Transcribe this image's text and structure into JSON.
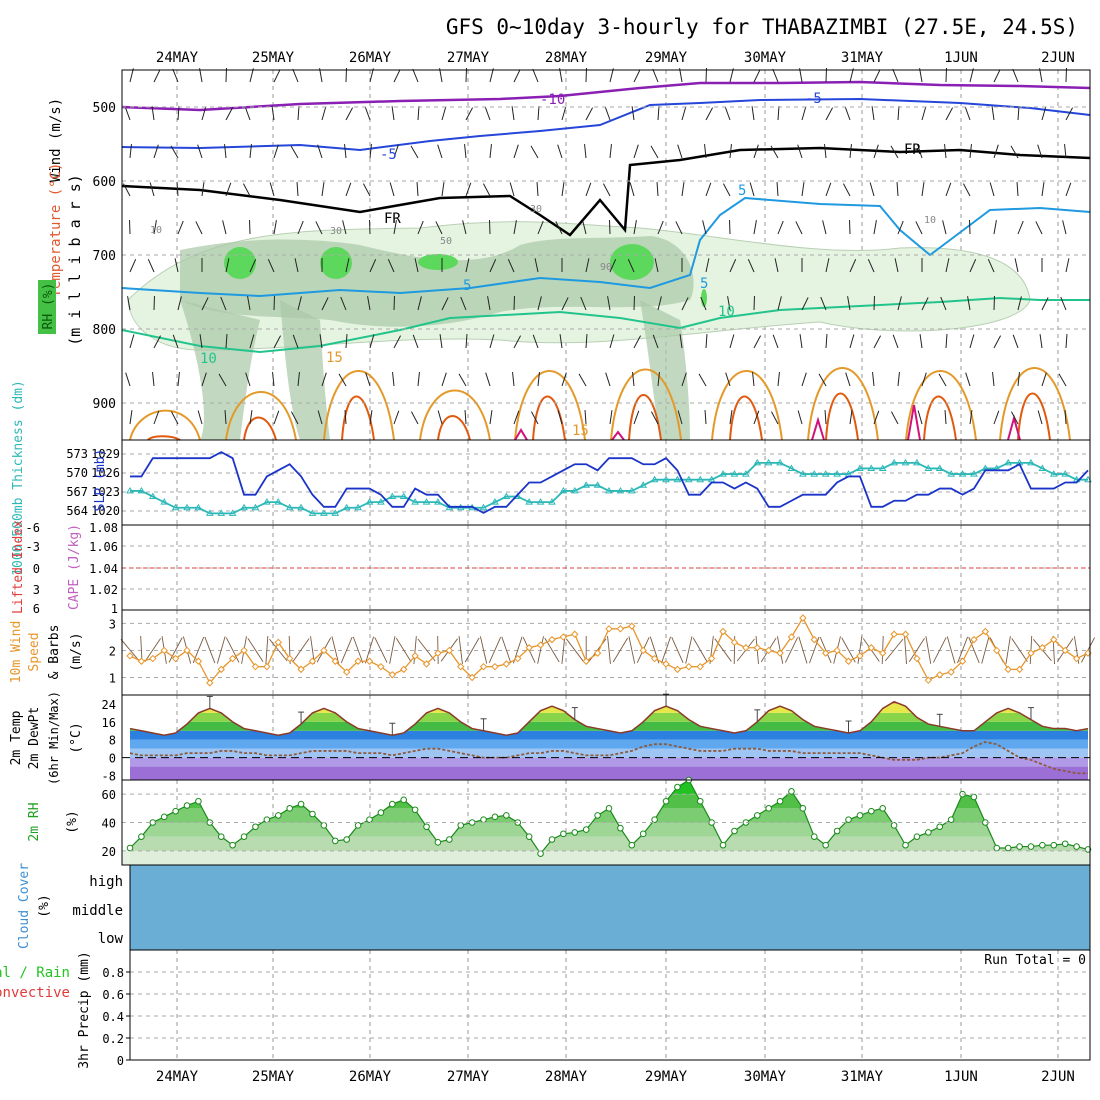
{
  "title": "GFS 0~10day 3-hourly for THABAZIMBI (27.5E, 24.5S)",
  "dates": [
    "24MAY",
    "25MAY",
    "26MAY",
    "27MAY",
    "28MAY",
    "29MAY",
    "30MAY",
    "31MAY",
    "1JUN",
    "2JUN"
  ],
  "colors": {
    "purple": "#8a1fb4",
    "blue": "#2546d8",
    "black": "#000000",
    "lightblue": "#1f9ae0",
    "teal": "#22c48c",
    "orange": "#e39a2a",
    "darkorange": "#e05a10",
    "magenta": "#d0127a",
    "rh_light": "#e5f3e1",
    "rh_mid": "#a9c7a6",
    "rh_green": "#5cd85c",
    "slp": "#1a33c8",
    "thick": "#2cb8b8",
    "li": "#e23b3b",
    "wind": "#e8952a",
    "cloud": "#6aaed6",
    "dew": "#8e5a3c"
  },
  "panels": {
    "upper_air": {
      "label_wind": "Wind (m/s)",
      "label_temp": "Temperature (°C)",
      "label_rh": "RH (%)",
      "label_mb": "(m i l l i b a r s)",
      "yticks": [
        "500",
        "600",
        "700",
        "800",
        "900"
      ],
      "contour_labels": [
        "-10",
        "-5",
        "-5",
        "FR",
        "FR",
        "5",
        "5",
        "5",
        "10",
        "10",
        "15",
        "15",
        "10",
        "10",
        "30",
        "30",
        "50",
        "90"
      ]
    },
    "slp_thick": {
      "label_thick": "1000-500mb Thickness (dm)",
      "label_slp": "SLP (mb)",
      "thick_ticks": [
        "573",
        "570",
        "567",
        "564"
      ],
      "slp_ticks": [
        "1029",
        "1026",
        "1023",
        "1020"
      ]
    },
    "cape_li": {
      "label_li": "Lifted Index",
      "label_cape": "CAPE (J/kg)",
      "li_ticks": [
        "-6",
        "-3",
        "0",
        "3",
        "6"
      ],
      "cape_ticks": [
        "1.08",
        "1.06",
        "1.04",
        "1.02",
        "1"
      ]
    },
    "wind10": {
      "label1": "10m Wind",
      "label2": "Speed",
      "label3": "& Barbs",
      "label4": "(m/s)",
      "yticks": [
        "3",
        "2",
        "1"
      ]
    },
    "temp2m": {
      "label1": "2m Temp",
      "label2": "2m DewPt",
      "label3": "(6hr Min/Max)",
      "label4": "(°C)",
      "yticks": [
        "24",
        "16",
        "8",
        "0",
        "-8"
      ]
    },
    "rh2m": {
      "label1": "2m RH",
      "label2": "(%)",
      "yticks": [
        "60",
        "40",
        "20"
      ]
    },
    "cloud": {
      "label1": "Cloud Cover",
      "label2": "(%)",
      "levels": [
        "high",
        "middle",
        "low"
      ]
    },
    "precip": {
      "label_total": "Total / Rain",
      "label_conv": "Convective",
      "label_axis": "3hr Precip (mm)",
      "yticks": [
        "0.8",
        "0.6",
        "0.4",
        "0.2",
        "0"
      ],
      "run_total": "Run Total = 0"
    }
  },
  "chart_data": [
    {
      "type": "line",
      "title": "SLP (mb)",
      "ylim": [
        1019,
        1031
      ],
      "series": [
        {
          "name": "SLP (mb)",
          "values": [
            1026,
            1026,
            1029,
            1029,
            1029,
            1029,
            1029,
            1029,
            1030,
            1029,
            1023,
            1023,
            1026,
            1027,
            1028,
            1026,
            1023,
            1021,
            1021,
            1024,
            1024,
            1024,
            1023,
            1021,
            1021,
            1024,
            1023,
            1023,
            1021,
            1021,
            1021,
            1020,
            1021,
            1021,
            1023,
            1025,
            1025,
            1026,
            1027,
            1028,
            1028,
            1027,
            1029,
            1029,
            1029,
            1028,
            1028,
            1029,
            1027,
            1023,
            1023,
            1025,
            1025,
            1024,
            1025,
            1024,
            1021,
            1021,
            1022,
            1023,
            1023,
            1023,
            1025,
            1026,
            1026,
            1021,
            1021,
            1022,
            1022,
            1023,
            1023,
            1024,
            1024,
            1023,
            1024,
            1027,
            1027,
            1027,
            1028,
            1024,
            1024,
            1024,
            1025,
            1025,
            1027
          ]
        }
      ]
    },
    {
      "type": "line",
      "title": "1000-500mb Thickness (dm)",
      "ylim": [
        562,
        575
      ],
      "series": [
        {
          "name": "1000-500mb Thickness (dm)",
          "values": [
            567,
            567,
            566,
            565,
            564,
            564,
            564,
            563,
            563,
            563,
            564,
            564,
            565,
            565,
            564,
            564,
            563,
            563,
            563,
            564,
            564,
            565,
            565,
            566,
            566,
            565,
            565,
            565,
            564,
            564,
            564,
            564,
            565,
            566,
            566,
            565,
            565,
            565,
            567,
            567,
            568,
            568,
            567,
            567,
            567,
            568,
            569,
            569,
            569,
            569,
            569,
            569,
            570,
            570,
            570,
            572,
            572,
            572,
            571,
            570,
            570,
            570,
            570,
            570,
            571,
            571,
            571,
            572,
            572,
            572,
            571,
            571,
            570,
            570,
            570,
            571,
            571,
            572,
            572,
            572,
            571,
            570,
            570,
            569,
            569
          ]
        }
      ]
    },
    {
      "type": "line",
      "title": "10m Wind Speed (m/s)",
      "ylim": [
        0.5,
        3.2
      ],
      "series": [
        {
          "name": "10m Wind Speed",
          "values": [
            1.8,
            1.6,
            1.7,
            2.0,
            1.7,
            2.0,
            1.6,
            0.8,
            1.3,
            1.7,
            2.0,
            1.4,
            1.4,
            2.3,
            1.7,
            1.3,
            1.6,
            2.0,
            1.6,
            1.2,
            1.6,
            1.6,
            1.4,
            1.1,
            1.3,
            1.8,
            1.5,
            1.9,
            2.0,
            1.4,
            1.0,
            1.4,
            1.4,
            1.5,
            1.7,
            2.1,
            2.2,
            2.4,
            2.5,
            2.6,
            1.6,
            1.9,
            2.8,
            2.8,
            2.9,
            2.0,
            1.7,
            1.5,
            1.3,
            1.4,
            1.4,
            1.7,
            2.7,
            2.3,
            2.1,
            2.1,
            2.0,
            1.9,
            2.5,
            3.2,
            2.4,
            1.9,
            2.0,
            1.6,
            1.8,
            2.1,
            1.9,
            2.6,
            2.6,
            1.7,
            0.9,
            1.1,
            1.2,
            1.6,
            2.4,
            2.7,
            2.0,
            1.3,
            1.3,
            1.9,
            2.1,
            2.4,
            2.0,
            1.7,
            1.9
          ]
        }
      ]
    },
    {
      "type": "area",
      "title": "2m Temp (°C)",
      "ylim": [
        -10,
        28
      ],
      "series": [
        {
          "name": "2m Temp",
          "values": [
            13,
            12,
            11,
            10,
            11,
            15,
            20,
            22,
            20,
            16,
            13,
            12,
            11,
            10,
            11,
            15,
            20,
            22,
            20,
            16,
            13,
            12,
            11,
            10,
            11,
            15,
            20,
            22,
            20,
            16,
            13,
            12,
            11,
            10,
            11,
            16,
            21,
            23,
            21,
            17,
            14,
            13,
            12,
            11,
            12,
            16,
            21,
            23,
            21,
            17,
            14,
            13,
            12,
            11,
            12,
            16,
            21,
            23,
            21,
            17,
            14,
            13,
            12,
            11,
            12,
            16,
            22,
            25,
            23,
            18,
            15,
            14,
            13,
            12,
            12,
            16,
            20,
            22,
            20,
            17,
            14,
            13,
            13,
            12,
            13
          ]
        },
        {
          "name": "2m DewPt",
          "values": [
            2,
            1,
            1,
            1,
            1,
            2,
            2,
            2,
            3,
            3,
            2,
            2,
            1,
            1,
            1,
            2,
            3,
            3,
            3,
            3,
            2,
            2,
            2,
            1,
            2,
            3,
            4,
            4,
            3,
            2,
            1,
            0,
            0,
            0,
            1,
            2,
            2,
            3,
            3,
            2,
            1,
            1,
            1,
            2,
            3,
            5,
            6,
            6,
            5,
            4,
            3,
            3,
            3,
            4,
            4,
            4,
            3,
            3,
            3,
            2,
            2,
            2,
            2,
            2,
            2,
            1,
            0,
            -1,
            -1,
            -1,
            0,
            0,
            1,
            2,
            5,
            7,
            6,
            3,
            0,
            -1,
            -3,
            -5,
            -6,
            -7,
            -7
          ]
        }
      ]
    },
    {
      "type": "area",
      "title": "2m RH (%)",
      "ylim": [
        10,
        70
      ],
      "series": [
        {
          "name": "2m RH",
          "values": [
            22,
            30,
            40,
            44,
            48,
            52,
            55,
            40,
            30,
            24,
            30,
            37,
            42,
            45,
            50,
            53,
            46,
            38,
            27,
            28,
            38,
            42,
            47,
            53,
            56,
            49,
            37,
            26,
            28,
            38,
            40,
            42,
            44,
            45,
            40,
            30,
            18,
            28,
            32,
            33,
            35,
            45,
            50,
            36,
            24,
            32,
            42,
            55,
            65,
            70,
            55,
            40,
            24,
            34,
            40,
            45,
            50,
            55,
            62,
            50,
            30,
            24,
            34,
            42,
            45,
            48,
            50,
            38,
            24,
            30,
            33,
            37,
            42,
            60,
            58,
            40,
            22,
            22,
            23,
            23,
            24,
            24,
            25,
            23,
            21
          ]
        }
      ]
    },
    {
      "type": "bar",
      "title": "3hr Precip (mm)",
      "ylim": [
        0,
        1
      ],
      "series": [
        {
          "name": "Total / Rain",
          "values": [
            0,
            0,
            0,
            0,
            0,
            0,
            0,
            0,
            0,
            0
          ]
        },
        {
          "name": "Convective",
          "values": [
            0,
            0,
            0,
            0,
            0,
            0,
            0,
            0,
            0,
            0
          ]
        }
      ]
    }
  ]
}
